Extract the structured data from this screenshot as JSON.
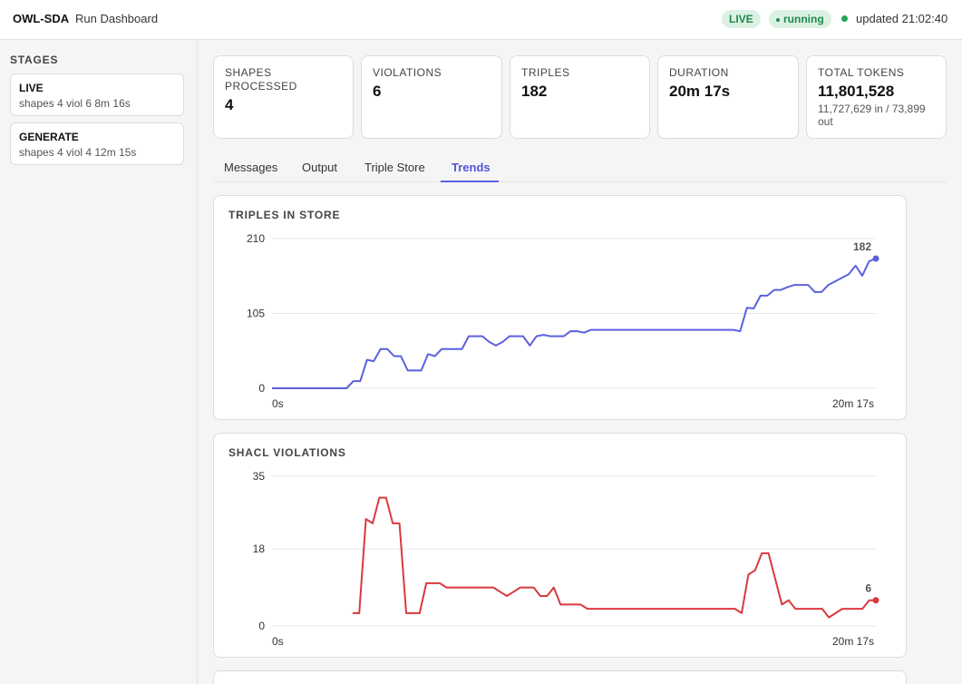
{
  "header": {
    "brand": "OWL-SDA",
    "subtitle": "Run Dashboard",
    "badge_live": "LIVE",
    "badge_running": "running",
    "updated": "updated 21:02:40"
  },
  "sidebar": {
    "title": "STAGES",
    "stages": [
      {
        "name": "LIVE",
        "meta": "shapes 4  viol 6  8m 16s"
      },
      {
        "name": "GENERATE",
        "meta": "shapes 4  viol 4  12m 15s"
      }
    ]
  },
  "cards": [
    {
      "label": "SHAPES PROCESSED",
      "value": "4"
    },
    {
      "label": "VIOLATIONS",
      "value": "6"
    },
    {
      "label": "TRIPLES",
      "value": "182"
    },
    {
      "label": "DURATION",
      "value": "20m 17s"
    },
    {
      "label": "TOTAL TOKENS",
      "value": "11,801,528",
      "sub": "11,727,629 in / 73,899 out"
    }
  ],
  "tabs": [
    {
      "label": "Messages"
    },
    {
      "label": "Output"
    },
    {
      "label": "Triple Store"
    },
    {
      "label": "Trends"
    }
  ],
  "active_tab": "Trends",
  "colors": {
    "accent": "#5b61dd",
    "violations": "#d9393e",
    "live_badge_bg": "#dbf1e3",
    "live_badge_fg": "#1f8a4c"
  },
  "chart_data": [
    {
      "type": "line",
      "title": "TRIPLES IN STORE",
      "xlabel": "",
      "ylabel": "",
      "x_tick_labels": [
        "0s",
        "20m 17s"
      ],
      "yticks": [
        0,
        105,
        210
      ],
      "ylim": [
        0,
        210
      ],
      "grid": true,
      "color": "#5b61dd",
      "last_label": "182",
      "values": [
        0,
        0,
        0,
        0,
        0,
        0,
        0,
        0,
        0,
        0,
        0,
        0,
        10,
        10,
        40,
        38,
        55,
        55,
        45,
        45,
        25,
        25,
        25,
        48,
        45,
        55,
        55,
        55,
        55,
        73,
        73,
        73,
        65,
        60,
        65,
        73,
        73,
        73,
        60,
        73,
        75,
        73,
        73,
        73,
        80,
        80,
        78,
        82,
        82,
        82,
        82,
        82,
        82,
        82,
        82,
        82,
        82,
        82,
        82,
        82,
        82,
        82,
        82,
        82,
        82,
        82,
        82,
        82,
        82,
        80,
        113,
        112,
        130,
        130,
        138,
        138,
        142,
        145,
        145,
        145,
        135,
        135,
        145,
        150,
        155,
        160,
        172,
        158,
        178,
        182
      ]
    },
    {
      "type": "line",
      "title": "SHACL VIOLATIONS",
      "xlabel": "",
      "ylabel": "",
      "x_tick_labels": [
        "0s",
        "20m 17s"
      ],
      "yticks": [
        0,
        18,
        35
      ],
      "ylim": [
        0,
        35
      ],
      "grid": true,
      "color": "#d9393e",
      "last_label": "6",
      "values": [
        null,
        null,
        null,
        null,
        null,
        null,
        null,
        null,
        null,
        null,
        null,
        null,
        3,
        3,
        25,
        24,
        30,
        30,
        24,
        24,
        3,
        3,
        3,
        10,
        10,
        10,
        9,
        9,
        9,
        9,
        9,
        9,
        9,
        9,
        8,
        7,
        8,
        9,
        9,
        9,
        7,
        7,
        9,
        5,
        5,
        5,
        5,
        4,
        4,
        4,
        4,
        4,
        4,
        4,
        4,
        4,
        4,
        4,
        4,
        4,
        4,
        4,
        4,
        4,
        4,
        4,
        4,
        4,
        4,
        4,
        3,
        12,
        13,
        17,
        17,
        11,
        5,
        6,
        4,
        4,
        4,
        4,
        4,
        2,
        3,
        4,
        4,
        4,
        4,
        6,
        6
      ]
    }
  ]
}
